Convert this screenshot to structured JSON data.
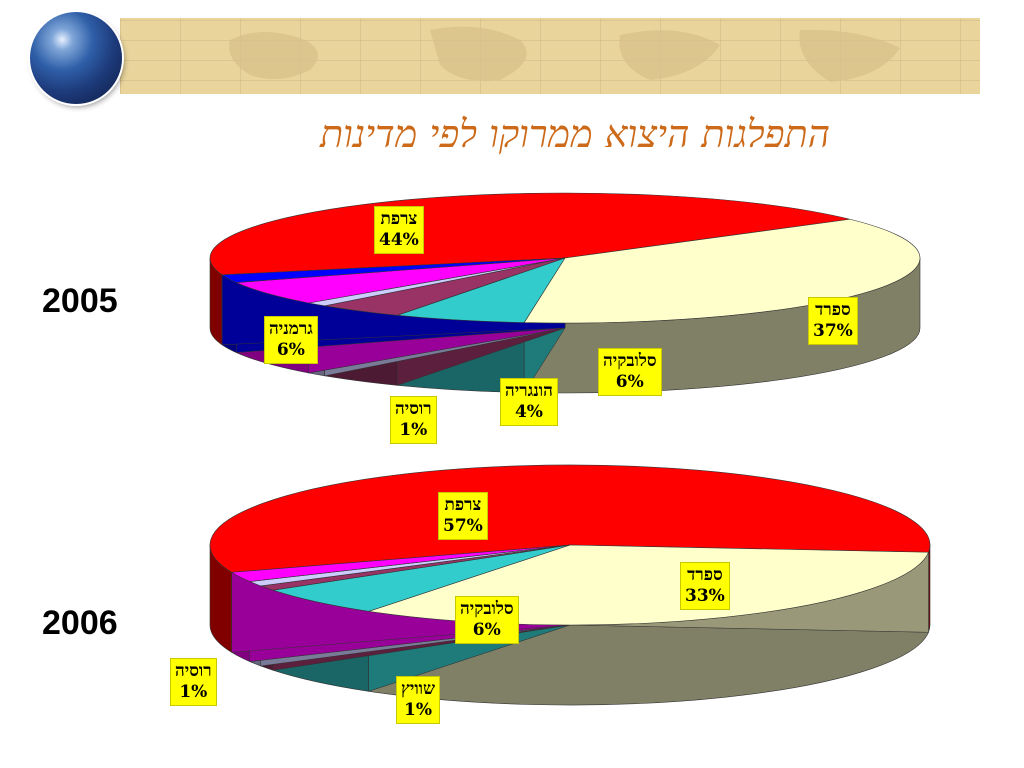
{
  "title": "התפלגות היצוא ממרוקו לפי מדינות",
  "chart_data": [
    {
      "type": "pie",
      "year_label": "2005",
      "slices": [
        {
          "label": "צרפת",
          "value": 44,
          "value_label": "44%",
          "color": "#ff0000"
        },
        {
          "label": "ספרד",
          "value": 37,
          "value_label": "37%",
          "color": "#ffffcc"
        },
        {
          "label": "סלובקיה",
          "value": 6,
          "value_label": "6%",
          "color": "#33cccc"
        },
        {
          "label": "הונגריה",
          "value": 4,
          "value_label": "4%",
          "color": "#993366"
        },
        {
          "label": "רוסיה",
          "value": 1,
          "value_label": "1%",
          "color": "#ccccff"
        },
        {
          "label": "גרמניה",
          "value": 6,
          "value_label": "6%",
          "color": "#ff00ff"
        },
        {
          "label": "",
          "value": 2,
          "value_label": "",
          "color": "#0000ff"
        }
      ]
    },
    {
      "type": "pie",
      "year_label": "2006",
      "slices": [
        {
          "label": "צרפת",
          "value": 57,
          "value_label": "57%",
          "color": "#ff0000"
        },
        {
          "label": "ספרד",
          "value": 33,
          "value_label": "33%",
          "color": "#ffffcc"
        },
        {
          "label": "סלובקיה",
          "value": 6,
          "value_label": "6%",
          "color": "#33cccc"
        },
        {
          "label": "שוויץ",
          "value": 1,
          "value_label": "1%",
          "color": "#993366"
        },
        {
          "label": "רוסיה",
          "value": 1,
          "value_label": "1%",
          "color": "#ccccff"
        },
        {
          "label": "",
          "value": 2,
          "value_label": "",
          "color": "#ff00ff"
        }
      ]
    }
  ]
}
